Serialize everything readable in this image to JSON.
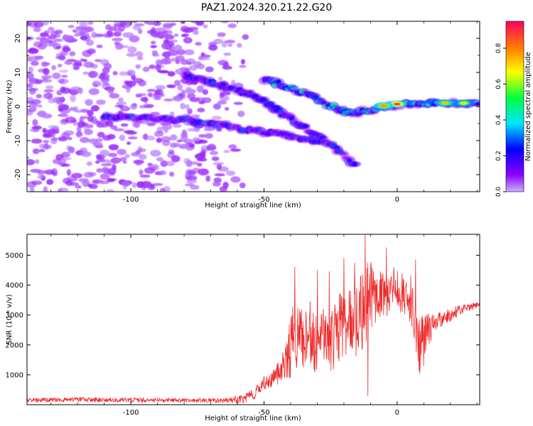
{
  "figure": {
    "title": "PAZ1.2024.320.21.22.G20"
  },
  "chart_data": [
    {
      "type": "heatmap",
      "xlabel": "Height of straight line (km)",
      "ylabel": "Frequency (Hz)",
      "xlim": [
        -139,
        31
      ],
      "ylim": [
        -25,
        25
      ],
      "xticks": [
        -100,
        -50,
        0
      ],
      "yticks": [
        -20,
        -10,
        0,
        10,
        20
      ],
      "grid": false,
      "colorbar": {
        "label": "Normalized spectral amplitude",
        "range": [
          0,
          0.95
        ],
        "ticks": [
          "0.0",
          "0.2",
          "0.4",
          "0.6",
          "0.8"
        ],
        "colors": [
          "#c9b2ff",
          "#8c00ff",
          "#0000ff",
          "#00e6ff",
          "#00ff40",
          "#ffff00",
          "#ff8000",
          "#ff0060"
        ]
      },
      "features": [
        {
          "name": "noise",
          "x_range": [
            -139,
            -55
          ],
          "freq_range": [
            -25,
            25
          ],
          "amplitude": 0.1
        },
        {
          "name": "track",
          "points": [
            [
              -110,
              -3
            ],
            [
              -95,
              -3.5
            ],
            [
              -80,
              -4
            ],
            [
              -65,
              -5.5
            ],
            [
              -55,
              -7
            ],
            [
              -45,
              -8
            ],
            [
              -35,
              -9.5
            ],
            [
              -28,
              -10.5
            ]
          ],
          "amplitude": 0.25
        },
        {
          "name": "track",
          "points": [
            [
              -80,
              9
            ],
            [
              -65,
              6
            ],
            [
              -55,
              3.5
            ],
            [
              -50,
              1.5
            ],
            [
              -45,
              -1
            ],
            [
              -40,
              -3.5
            ],
            [
              -35,
              -6
            ],
            [
              -30,
              -8.5
            ],
            [
              -25,
              -11
            ],
            [
              -20,
              -14
            ],
            [
              -15,
              -18
            ]
          ],
          "amplitude": 0.25
        },
        {
          "name": "track",
          "points": [
            [
              -50,
              8
            ],
            [
              -40,
              5.5
            ],
            [
              -32,
              3
            ],
            [
              -25,
              0
            ],
            [
              -18,
              -2
            ],
            [
              -10,
              -1
            ],
            [
              0,
              0.5
            ],
            [
              10,
              1
            ],
            [
              20,
              1
            ],
            [
              31,
              1
            ]
          ],
          "amplitude": 0.4
        },
        {
          "name": "peak",
          "x": 0,
          "freq": 0.7,
          "amplitude": 0.9
        },
        {
          "name": "peak",
          "x": -5,
          "freq": 0.2,
          "amplitude": 0.8
        },
        {
          "name": "peak",
          "x": 18,
          "freq": 1,
          "amplitude": 0.75
        },
        {
          "name": "peak",
          "x": 25,
          "freq": 1,
          "amplitude": 0.7
        }
      ]
    },
    {
      "type": "line",
      "xlabel": "Height of straight line (km)",
      "ylabel": "SNR (10 * v/v)",
      "xlim": [
        -139,
        31
      ],
      "ylim": [
        0,
        5700
      ],
      "xticks": [
        -100,
        -50,
        0
      ],
      "yticks": [
        1000,
        2000,
        3000,
        4000,
        5000
      ],
      "grid": false,
      "series": [
        {
          "color": "#ee2a2a",
          "x": [
            -139,
            -120,
            -100,
            -80,
            -65,
            -58,
            -54,
            -50,
            -46,
            -44,
            -42,
            -40,
            -39,
            -38,
            -36,
            -34,
            -32,
            -30,
            -28,
            -26,
            -24,
            -22,
            -20,
            -18,
            -16,
            -14,
            -12,
            -10,
            -8,
            -6,
            -4,
            -2,
            0,
            2,
            4,
            6,
            8,
            10,
            12,
            15,
            20,
            25,
            31
          ],
          "y": [
            150,
            170,
            160,
            150,
            140,
            180,
            350,
            750,
            900,
            1150,
            1500,
            1900,
            2500,
            2300,
            2100,
            2200,
            2400,
            2000,
            2100,
            2300,
            2200,
            2500,
            2700,
            2900,
            2600,
            3000,
            3400,
            3700,
            3500,
            3800,
            3600,
            3900,
            3900,
            3700,
            3800,
            3300,
            2000,
            2200,
            2500,
            2800,
            3000,
            3200,
            3350
          ],
          "spread": [
            70,
            80,
            80,
            70,
            80,
            150,
            200,
            250,
            300,
            450,
            600,
            1000,
            1200,
            1100,
            1100,
            1000,
            1300,
            1000,
            1100,
            1100,
            1100,
            1200,
            1100,
            1100,
            1200,
            1300,
            1400,
            1200,
            900,
            800,
            800,
            700,
            700,
            700,
            800,
            900,
            1100,
            800,
            600,
            300,
            250,
            150,
            100
          ],
          "peaks": [
            [
              -38.5,
              4600
            ],
            [
              -30,
              4500
            ],
            [
              -25.5,
              4450
            ],
            [
              -20,
              4900
            ],
            [
              -16,
              4750
            ],
            [
              -12,
              5700
            ],
            [
              -11,
              300
            ],
            [
              -4,
              5250
            ],
            [
              7,
              4850
            ],
            [
              10,
              1300
            ]
          ]
        }
      ]
    }
  ]
}
